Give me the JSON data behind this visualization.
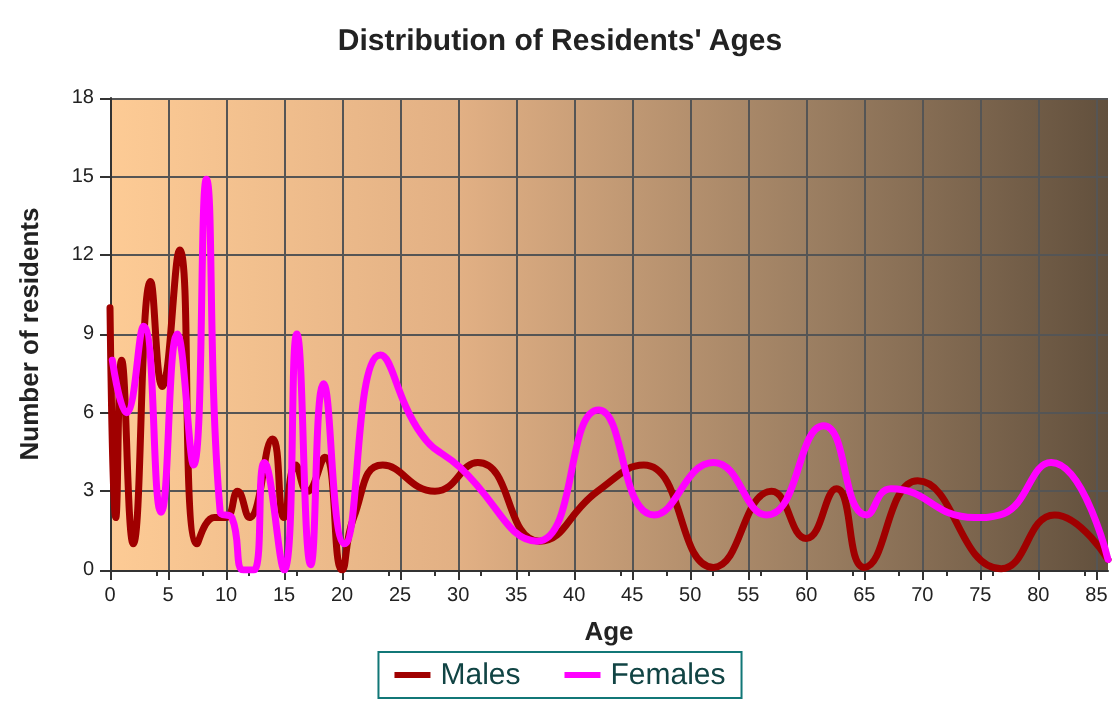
{
  "chart_data": {
    "type": "line",
    "title": "Distribution of Residents' Ages",
    "xlabel": "Age",
    "ylabel": "Number of residents",
    "xlim": [
      0,
      86
    ],
    "xticks": [
      0,
      5,
      10,
      15,
      20,
      25,
      30,
      35,
      40,
      45,
      50,
      55,
      60,
      65,
      70,
      75,
      80,
      85
    ],
    "ylim": [
      0,
      18
    ],
    "yticks": [
      0,
      3,
      6,
      9,
      12,
      15,
      18
    ],
    "grid": true,
    "legend": "bottom",
    "marker": "none",
    "line_style": "solid",
    "series": [
      {
        "name": "Males",
        "color": "#a00000",
        "x": [
          0,
          0.5,
          1,
          2,
          3.5,
          4.5,
          6,
          7.5,
          9,
          10,
          11,
          12,
          14,
          15,
          16,
          17,
          18.5,
          20,
          21,
          23.5,
          28,
          31.7,
          37,
          42,
          46,
          52,
          57,
          60,
          62.6,
          65,
          69.6,
          76.8,
          81.4,
          86
        ],
        "values": [
          10,
          2,
          8,
          1,
          11,
          7,
          12.2,
          1,
          2,
          2,
          3,
          2,
          5,
          2,
          4,
          3,
          4.3,
          0,
          2,
          4,
          3,
          4.1,
          1.1,
          3,
          4,
          0.1,
          3,
          1.2,
          3.1,
          0.1,
          3.4,
          0.05,
          2.1,
          0.4
        ]
      },
      {
        "name": "Females",
        "color": "#ff00ff",
        "x": [
          0.2,
          1.4,
          2.9,
          4.4,
          5.8,
          7.2,
          8.3,
          9.5,
          10.5,
          11.5,
          12.4,
          13.3,
          15,
          16.1,
          17.3,
          18.4,
          20.2,
          23.3,
          26.8,
          30.2,
          36.8,
          42.1,
          46.9,
          52,
          56.6,
          61.5,
          65.2,
          67.3,
          74.5,
          76.7,
          81.1,
          86
        ],
        "values": [
          8,
          6,
          9.3,
          2.2,
          9,
          4,
          14.9,
          2.2,
          2,
          0,
          0,
          4.1,
          0,
          9,
          0.2,
          7.1,
          1,
          8.2,
          5.2,
          3.9,
          1.1,
          6.1,
          2.1,
          4.1,
          2.1,
          5.5,
          2.1,
          3.1,
          2,
          2.1,
          4.1,
          0.4
        ]
      }
    ]
  }
}
